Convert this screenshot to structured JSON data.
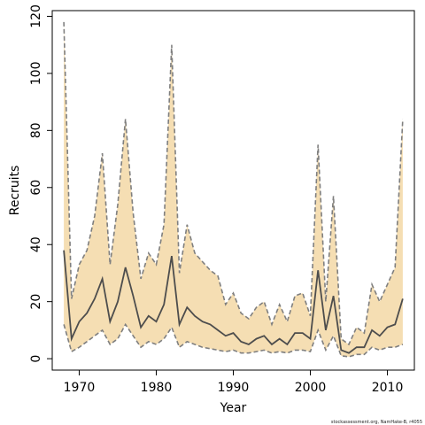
{
  "chart_data": {
    "type": "area",
    "xlabel": "Year",
    "ylabel": "Recruits",
    "xlim": [
      1966.5,
      2013.5
    ],
    "ylim": [
      -4,
      122
    ],
    "xticks": [
      1970,
      1980,
      1990,
      2000,
      2010
    ],
    "yticks": [
      0,
      20,
      40,
      60,
      80,
      100,
      120
    ],
    "x": [
      1968,
      1969,
      1970,
      1971,
      1972,
      1973,
      1974,
      1975,
      1976,
      1977,
      1978,
      1979,
      1980,
      1981,
      1982,
      1983,
      1984,
      1985,
      1986,
      1987,
      1988,
      1989,
      1990,
      1991,
      1992,
      1993,
      1994,
      1995,
      1996,
      1997,
      1998,
      1999,
      2000,
      2001,
      2002,
      2003,
      2004,
      2005,
      2006,
      2007,
      2008,
      2009,
      2010,
      2011,
      2012
    ],
    "series": [
      {
        "role": "estimate",
        "values": [
          38,
          7,
          13,
          16,
          21,
          28,
          13,
          20,
          32,
          22,
          11,
          15,
          13,
          19,
          36,
          12,
          18,
          15,
          13,
          12,
          10,
          8,
          9,
          6,
          5,
          7,
          8,
          5,
          7,
          5,
          9,
          9,
          7,
          31,
          10,
          22,
          3,
          2,
          4,
          4,
          10,
          8,
          11,
          12,
          21
        ]
      },
      {
        "role": "upper",
        "values": [
          118,
          21,
          33,
          38,
          50,
          72,
          33,
          54,
          84,
          51,
          28,
          37,
          33,
          47,
          110,
          30,
          47,
          37,
          34,
          31,
          29,
          19,
          23,
          16,
          14,
          18,
          20,
          12,
          19,
          13,
          22,
          23,
          15,
          75,
          20,
          57,
          7,
          5,
          11,
          9,
          26,
          20,
          26,
          32,
          84
        ]
      },
      {
        "role": "lower",
        "values": [
          12,
          2.5,
          4,
          6,
          8,
          10,
          5,
          7,
          12,
          8,
          4,
          6,
          5,
          7,
          11,
          4,
          6,
          5,
          4,
          3.5,
          3,
          2.5,
          3,
          2,
          2,
          2.5,
          3,
          2,
          2.5,
          2,
          3,
          3,
          2.5,
          10,
          3,
          8,
          1,
          0.7,
          1.5,
          1.5,
          4,
          3,
          4,
          4,
          5
        ]
      }
    ],
    "colors": {
      "band_fill": "#f5deb3",
      "bound_line": "#7f7f7f",
      "estimate_line": "#4d4d4d"
    }
  },
  "footer": "stockassessment.org, NamHake-B, r4055"
}
